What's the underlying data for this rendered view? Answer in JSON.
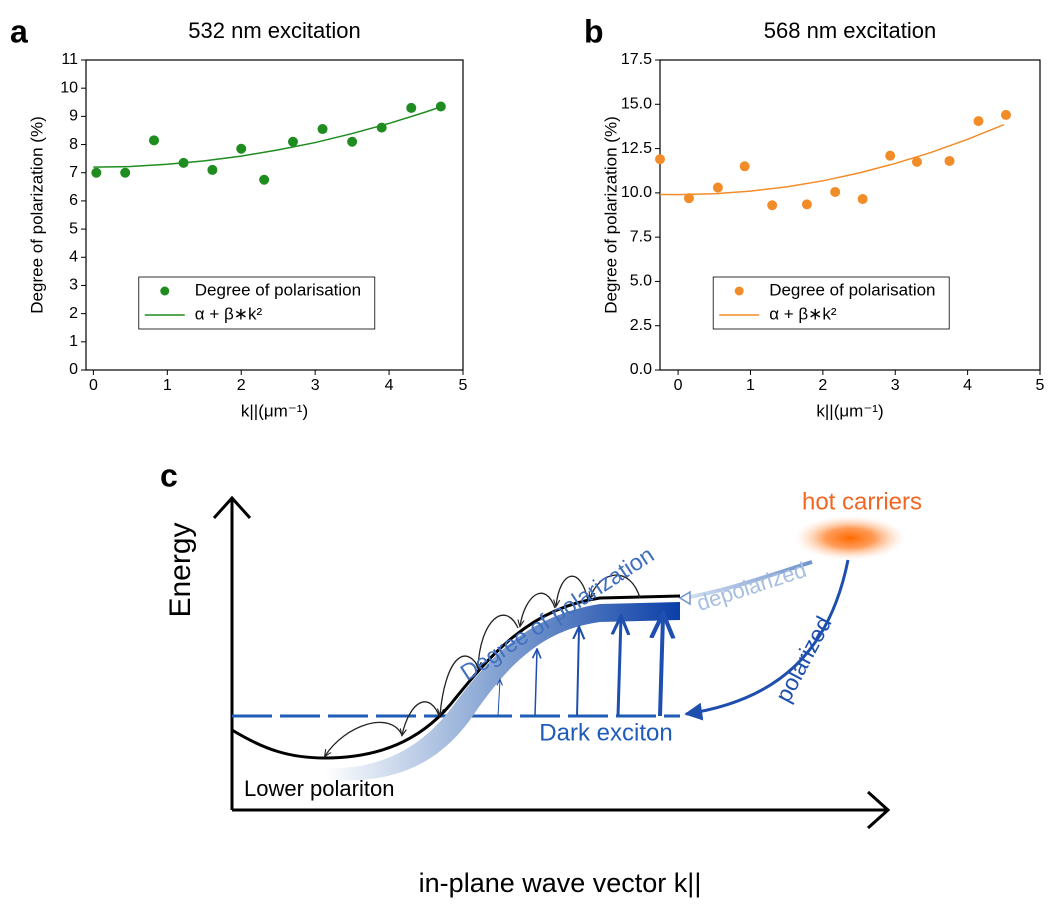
{
  "chart_data": [
    {
      "type": "scatter",
      "panel": "a",
      "title": "532 nm excitation",
      "x_label": "k||(μm⁻¹)",
      "y_label": "Degree of polarization (%)",
      "xlim": [
        -0.1,
        5
      ],
      "xticks": [
        0,
        1,
        2,
        3,
        4,
        5
      ],
      "ylim": [
        0,
        11
      ],
      "yticks": [
        0,
        1,
        2,
        3,
        4,
        5,
        6,
        7,
        8,
        9,
        10,
        11
      ],
      "legend": "center-left",
      "series": [
        {
          "name": "Degree of polarisation",
          "kind": "scatter",
          "color": "#1e8c1e",
          "x": [
            0.04,
            0.43,
            0.82,
            1.22,
            1.61,
            2.0,
            2.31,
            2.7,
            3.1,
            3.5,
            3.9,
            4.3,
            4.7
          ],
          "values": [
            7.0,
            7.0,
            8.15,
            7.35,
            7.1,
            7.85,
            6.75,
            8.1,
            8.55,
            8.1,
            8.6,
            9.3,
            9.35
          ]
        },
        {
          "name": "α + β∗k²",
          "kind": "line",
          "color": "#1e8c1e",
          "x": [
            0,
            0.5,
            1,
            1.5,
            2,
            2.5,
            3,
            3.5,
            4,
            4.5,
            4.7
          ],
          "values": [
            7.2,
            7.22,
            7.3,
            7.42,
            7.59,
            7.81,
            8.07,
            8.39,
            8.75,
            9.16,
            9.34
          ]
        }
      ]
    },
    {
      "type": "scatter",
      "panel": "b",
      "title": "568 nm excitation",
      "x_label": "k||(μm⁻¹)",
      "y_label": "Degree of polarization (%)",
      "xlim": [
        -0.25,
        5
      ],
      "xticks": [
        0,
        1,
        2,
        3,
        4,
        5
      ],
      "ylim": [
        0,
        17.5
      ],
      "yticks": [
        {
          "value": 0,
          "label": "0.0"
        },
        {
          "value": 2.5,
          "label": "2.5"
        },
        {
          "value": 5,
          "label": "5.0"
        },
        {
          "value": 7.5,
          "label": "7.5"
        },
        {
          "value": 10,
          "label": "10.0"
        },
        {
          "value": 12.5,
          "label": "12.5"
        },
        {
          "value": 15,
          "label": "15.0"
        },
        {
          "value": 17.5,
          "label": "17.5"
        }
      ],
      "legend": "center-left",
      "series": [
        {
          "name": "Degree of polarisation",
          "kind": "scatter",
          "color": "#f28c28",
          "x": [
            -0.25,
            0.15,
            0.55,
            0.92,
            1.3,
            1.78,
            2.17,
            2.55,
            2.93,
            3.3,
            3.75,
            4.15,
            4.53
          ],
          "values": [
            11.9,
            9.7,
            10.3,
            11.5,
            9.3,
            9.35,
            10.05,
            9.65,
            12.1,
            11.75,
            11.8,
            14.05,
            14.4
          ]
        },
        {
          "name": "α + β∗k²",
          "kind": "line",
          "color": "#f28c28",
          "x": [
            -0.25,
            0,
            0.5,
            1,
            1.5,
            2,
            2.5,
            3,
            3.5,
            4,
            4.5
          ],
          "values": [
            9.91,
            9.9,
            9.95,
            10.1,
            10.34,
            10.68,
            11.12,
            11.66,
            12.29,
            13.02,
            13.85
          ]
        }
      ]
    }
  ],
  "diagram": {
    "panel": "c",
    "y_axis": "Energy",
    "x_axis": "in-plane wave vector k||",
    "hot_carriers": "hot carriers",
    "degree": "Degree of polarization",
    "depolarized": "depolarized",
    "polarized": "polarized",
    "dark_exciton": "Dark exciton",
    "lower_polariton": "Lower polariton"
  }
}
